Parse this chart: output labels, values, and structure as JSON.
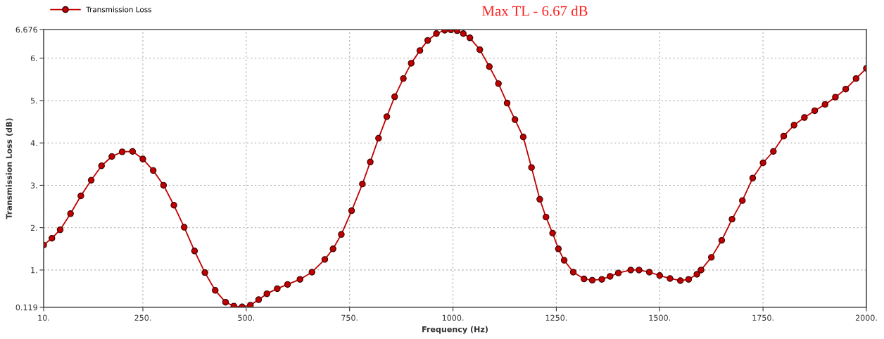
{
  "chart_data": {
    "type": "line",
    "xlabel": "Frequency (Hz)",
    "ylabel": "Transmission Loss (dB)",
    "annotations": [
      "Max TL - 6.67 dB"
    ],
    "x": [
      10,
      30,
      50,
      75,
      100,
      125,
      150,
      175,
      200,
      225,
      250,
      275,
      300,
      325,
      350,
      375,
      400,
      425,
      450,
      470,
      490,
      510,
      530,
      550,
      575,
      600,
      630,
      659,
      690,
      710,
      730,
      755,
      781,
      800,
      820,
      840,
      859,
      880,
      899,
      920,
      939,
      960,
      980,
      995,
      1010,
      1025,
      1041,
      1065,
      1088,
      1110,
      1131,
      1150,
      1170,
      1190,
      1210,
      1225,
      1241,
      1255,
      1269,
      1291,
      1317,
      1337,
      1360,
      1380,
      1400,
      1430,
      1450,
      1475,
      1500,
      1525,
      1550,
      1570,
      1590,
      1600,
      1625,
      1650,
      1675,
      1700,
      1725,
      1750,
      1775,
      1800,
      1825,
      1850,
      1875,
      1900,
      1925,
      1950,
      1975,
      2000
    ],
    "series": [
      {
        "name": "Transmission Loss",
        "color": "#c00000",
        "values": [
          1.59,
          1.75,
          1.95,
          2.33,
          2.75,
          3.12,
          3.46,
          3.68,
          3.79,
          3.8,
          3.62,
          3.35,
          3.0,
          2.53,
          2.01,
          1.45,
          0.94,
          0.52,
          0.24,
          0.15,
          0.13,
          0.17,
          0.3,
          0.44,
          0.56,
          0.66,
          0.78,
          0.95,
          1.25,
          1.5,
          1.84,
          2.4,
          3.03,
          3.55,
          4.11,
          4.62,
          5.09,
          5.52,
          5.88,
          6.18,
          6.42,
          6.58,
          6.66,
          6.67,
          6.65,
          6.58,
          6.48,
          6.2,
          5.8,
          5.4,
          4.94,
          4.55,
          4.14,
          3.42,
          2.67,
          2.25,
          1.87,
          1.5,
          1.23,
          0.95,
          0.79,
          0.76,
          0.78,
          0.85,
          0.93,
          1.0,
          1.0,
          0.95,
          0.87,
          0.8,
          0.75,
          0.78,
          0.9,
          1.0,
          1.3,
          1.7,
          2.2,
          2.64,
          3.17,
          3.53,
          3.8,
          4.16,
          4.42,
          4.6,
          4.76,
          4.91,
          5.08,
          5.27,
          5.52,
          5.76
        ]
      }
    ],
    "xlim": [
      10,
      2000
    ],
    "xticks": [
      {
        "value": 10,
        "label": "10."
      },
      {
        "value": 250,
        "label": "250."
      },
      {
        "value": 500,
        "label": "500."
      },
      {
        "value": 750,
        "label": "750."
      },
      {
        "value": 1000,
        "label": "1000."
      },
      {
        "value": 1250,
        "label": "1250."
      },
      {
        "value": 1500,
        "label": "1500."
      },
      {
        "value": 1750,
        "label": "1750."
      },
      {
        "value": 2000,
        "label": "2000."
      }
    ],
    "ylim": [
      0.119,
      6.676
    ],
    "yticks": [
      0.119,
      {
        "value": 1,
        "label": "1."
      },
      {
        "value": 2,
        "label": "2."
      },
      {
        "value": 3,
        "label": "3."
      },
      {
        "value": 4,
        "label": "4."
      },
      {
        "value": 5,
        "label": "5."
      },
      {
        "value": 6,
        "label": "6."
      },
      6.676
    ],
    "grid": true,
    "legend": "top left",
    "marker": "circle",
    "line_style": "solid"
  }
}
